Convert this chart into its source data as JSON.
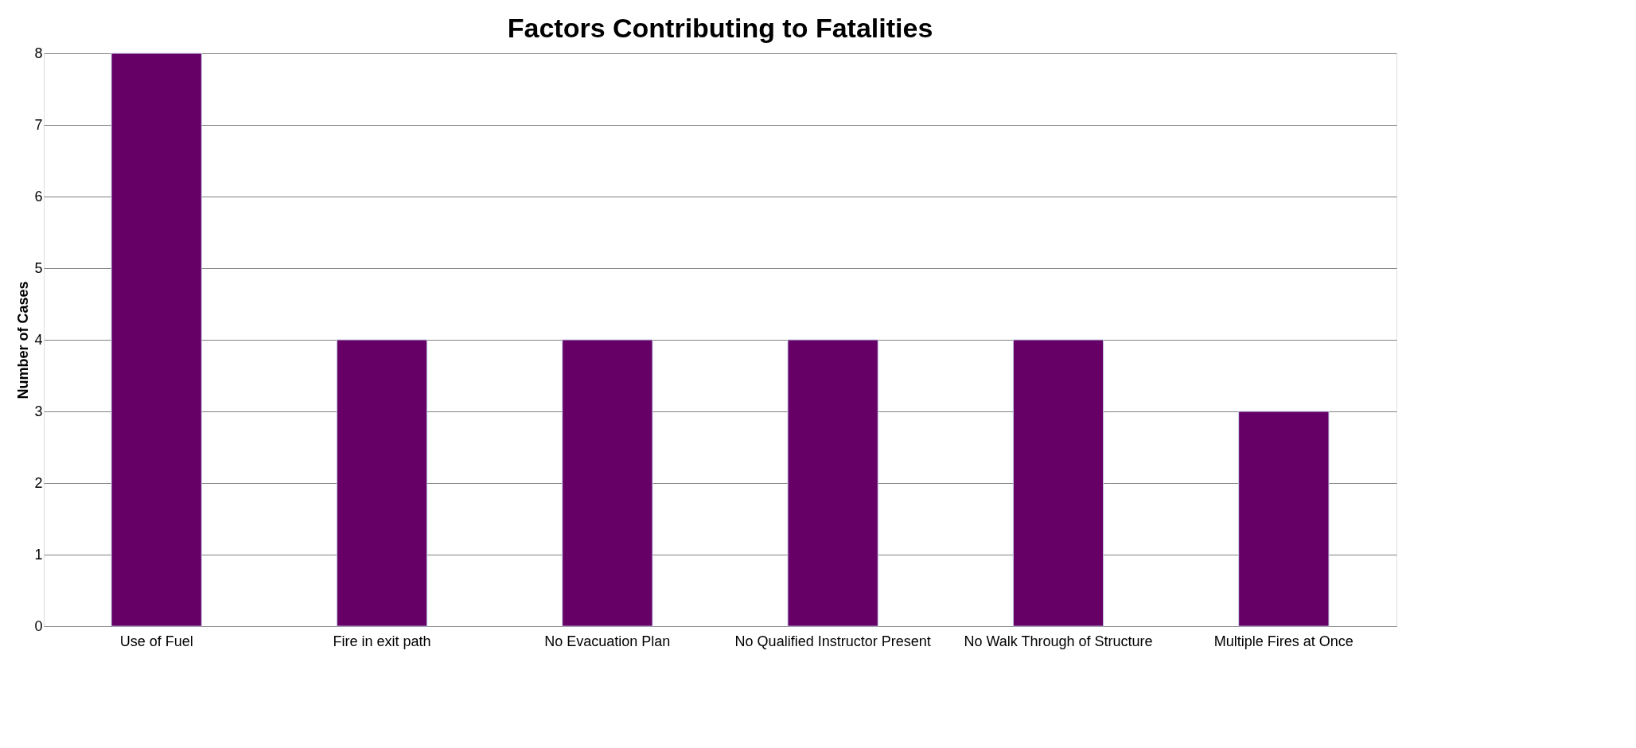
{
  "chart_data": {
    "type": "bar",
    "title": "Factors Contributing to Fatalities",
    "ylabel": "Number of Cases",
    "categories": [
      "Use of Fuel",
      "Fire in exit path",
      "No Evacuation Plan",
      "No Qualified Instructor Present",
      "No Walk Through of Structure",
      "Multiple Fires at Once"
    ],
    "values": [
      8,
      4,
      4,
      4,
      4,
      3
    ],
    "color": "#660066",
    "ylim": [
      0,
      8
    ],
    "yticks": [
      0,
      1,
      2,
      3,
      4,
      5,
      6,
      7,
      8
    ],
    "grid": "y"
  }
}
